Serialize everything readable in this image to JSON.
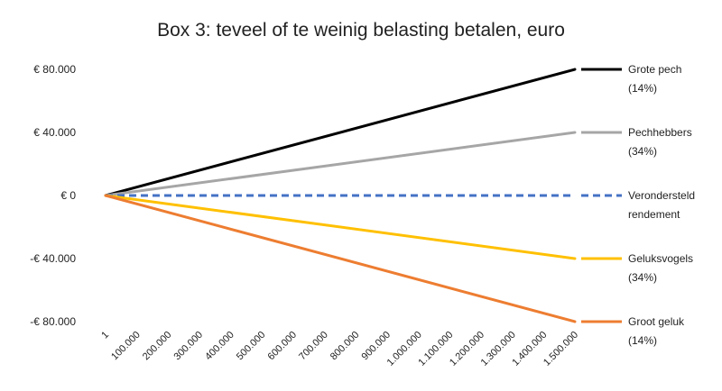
{
  "chart_data": {
    "type": "line",
    "title": "Box 3: teveel of te weinig belasting betalen, euro",
    "xlabel": "",
    "ylabel": "",
    "x": [
      1,
      1500000
    ],
    "x_tick_labels": [
      "1",
      "100.000",
      "200.000",
      "300.000",
      "400.000",
      "500.000",
      "600.000",
      "700.000",
      "800.000",
      "900.000",
      "1.000.000",
      "1.100.000",
      "1.200.000",
      "1.300.000",
      "1.400.000",
      "1.500.000"
    ],
    "x_tick_values": [
      1,
      100000,
      200000,
      300000,
      400000,
      500000,
      600000,
      700000,
      800000,
      900000,
      1000000,
      1100000,
      1200000,
      1300000,
      1400000,
      1500000
    ],
    "ylim": [
      -80000,
      80000
    ],
    "y_ticks": [
      80000,
      40000,
      0,
      -40000,
      -80000
    ],
    "y_tick_labels": [
      "€ 80.000",
      "€ 40.000",
      "€ 0",
      "-€ 40.000",
      "-€ 80.000"
    ],
    "grid": false,
    "legend_position": "right",
    "series": [
      {
        "name_line1": "Grote pech",
        "name_line2": "(14%)",
        "values": [
          0,
          80000
        ],
        "color": "#000000",
        "dashed": false
      },
      {
        "name_line1": "Pechhebbers",
        "name_line2": "(34%)",
        "values": [
          0,
          40000
        ],
        "color": "#a6a6a6",
        "dashed": false
      },
      {
        "name_line1": "Verondersteld",
        "name_line2": "rendement",
        "values": [
          0,
          0
        ],
        "color": "#4472c4",
        "dashed": true
      },
      {
        "name_line1": "Geluksvogels",
        "name_line2": "(34%)",
        "values": [
          0,
          -40000
        ],
        "color": "#ffc000",
        "dashed": false
      },
      {
        "name_line1": "Groot geluk",
        "name_line2": "(14%)",
        "values": [
          0,
          -80000
        ],
        "color": "#ed7d31",
        "dashed": false
      }
    ]
  }
}
